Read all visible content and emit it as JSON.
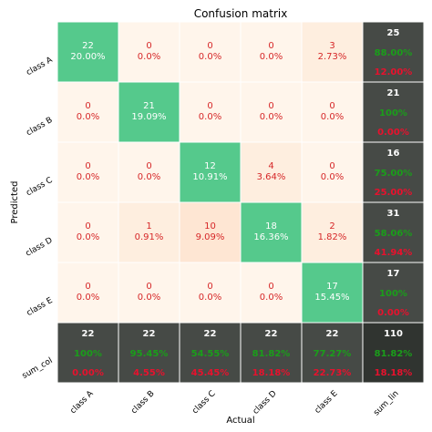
{
  "chart_data": {
    "type": "heatmap",
    "title": "Confusion matrix",
    "xlabel": "Actual",
    "ylabel": "Predicted",
    "row_labels": [
      "class A",
      "class B",
      "class C",
      "class D",
      "class E",
      "sum_lin"
    ],
    "col_labels": [
      "class A",
      "class B",
      "class C",
      "class D",
      "class E",
      "sum_col"
    ],
    "x_tick_labels": [
      "class A",
      "class B",
      "class C",
      "class D",
      "class E",
      "sum_lin"
    ],
    "y_tick_labels": [
      "class A",
      "class B",
      "class C",
      "class D",
      "class E",
      "sum_col"
    ],
    "counts": [
      [
        22,
        0,
        0,
        0,
        3
      ],
      [
        0,
        21,
        0,
        0,
        0
      ],
      [
        0,
        0,
        12,
        4,
        0
      ],
      [
        0,
        1,
        10,
        18,
        2
      ],
      [
        0,
        0,
        0,
        0,
        17
      ]
    ],
    "percents": [
      [
        "20.00%",
        "0.0%",
        "0.0%",
        "0.0%",
        "2.73%"
      ],
      [
        "0.0%",
        "19.09%",
        "0.0%",
        "0.0%",
        "0.0%"
      ],
      [
        "0.0%",
        "0.0%",
        "10.91%",
        "3.64%",
        "0.0%"
      ],
      [
        "0.0%",
        "0.91%",
        "9.09%",
        "16.36%",
        "1.82%"
      ],
      [
        "0.0%",
        "0.0%",
        "0.0%",
        "0.0%",
        "15.45%"
      ]
    ],
    "row_sums": [
      {
        "count": 25,
        "correct": "88.00%",
        "error": "12.00%"
      },
      {
        "count": 21,
        "correct": "100%",
        "error": "0.00%"
      },
      {
        "count": 16,
        "correct": "75.00%",
        "error": "25.00%"
      },
      {
        "count": 31,
        "correct": "58.06%",
        "error": "41.94%"
      },
      {
        "count": 17,
        "correct": "100%",
        "error": "0.00%"
      }
    ],
    "col_sums": [
      {
        "count": 22,
        "correct": "100%",
        "error": "0.00%"
      },
      {
        "count": 22,
        "correct": "95.45%",
        "error": "4.55%"
      },
      {
        "count": 22,
        "correct": "54.55%",
        "error": "45.45%"
      },
      {
        "count": 22,
        "correct": "81.82%",
        "error": "18.18%"
      },
      {
        "count": 22,
        "correct": "77.27%",
        "error": "22.73%"
      }
    ],
    "total": {
      "count": 110,
      "correct": "81.82%",
      "error": "18.18%"
    },
    "colors": {
      "diagonal": "#55c98c",
      "off_zero": "#fff5eb",
      "off_low": "#feeedf",
      "off_mid": "#fee6d3",
      "sum_cell": "#464a46",
      "total_cell": "#303430",
      "off_text": "#d62728",
      "correct_text": "#1a9e1a",
      "error_text": "#e8112d",
      "sum_count_text": "#ffffff",
      "grid": "#ffffff"
    }
  }
}
